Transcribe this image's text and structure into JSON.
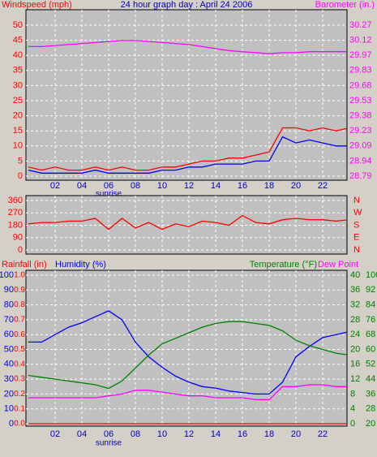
{
  "chart_data": [
    {
      "type": "line",
      "title": "24 hour graph day : April 24 2006",
      "y_label": "Windspeed (mph)",
      "y2_label": "Barometer (in.)",
      "x": [
        0,
        1,
        2,
        3,
        4,
        5,
        6,
        7,
        8,
        9,
        10,
        11,
        12,
        13,
        14,
        15,
        16,
        17,
        18,
        19,
        20,
        21,
        22,
        23,
        24
      ],
      "xlim": [
        0,
        24
      ],
      "xticks": [
        {
          "value": 2,
          "label": "02"
        },
        {
          "value": 4,
          "label": "04"
        },
        {
          "value": 6,
          "label": "06"
        },
        {
          "value": 8,
          "label": "08"
        },
        {
          "value": 10,
          "label": "10"
        },
        12,
        14,
        16,
        18,
        20,
        22
      ],
      "annotation": {
        "x": 6,
        "text": "sunrise"
      },
      "ylim": [
        0,
        50
      ],
      "yticks": [
        0,
        5,
        10,
        15,
        20,
        25,
        30,
        35,
        40,
        45,
        50
      ],
      "y2lim": [
        28.79,
        30.27
      ],
      "y2ticks": [
        28.79,
        {
          "value": 28.938,
          "label": "28.94"
        },
        {
          "value": 29.086,
          "label": "29.09"
        },
        {
          "value": 29.234,
          "label": "29.23"
        },
        {
          "value": 29.382,
          "label": "29.38"
        },
        29.53,
        {
          "value": 29.678,
          "label": "29.68"
        },
        {
          "value": 29.826,
          "label": "29.83"
        },
        {
          "value": 29.974,
          "label": "29.97"
        },
        {
          "value": 30.122,
          "label": "30.12"
        },
        30.27
      ],
      "grid": true,
      "series": [
        {
          "color": "#ff00ff",
          "axis": "y2",
          "values": [
            30.06,
            30.06,
            30.07,
            30.08,
            30.09,
            30.1,
            30.11,
            30.12,
            30.12,
            30.11,
            30.1,
            30.09,
            30.08,
            30.06,
            30.04,
            30.02,
            30.01,
            30.0,
            29.99,
            30.0,
            30.0,
            30.01,
            30.01,
            30.01,
            30.01
          ]
        },
        {
          "color": "#ff0000",
          "values": [
            3,
            2,
            3,
            2,
            2,
            3,
            2,
            3,
            2,
            2,
            3,
            3,
            4,
            5,
            5,
            6,
            6,
            7,
            8,
            16,
            16,
            15,
            16,
            15,
            16
          ]
        },
        {
          "color": "#0000ff",
          "values": [
            2,
            1,
            1,
            1,
            1,
            2,
            1,
            1,
            1,
            1,
            2,
            2,
            3,
            3,
            4,
            4,
            4,
            5,
            5,
            13,
            11,
            12,
            11,
            10,
            10
          ]
        }
      ]
    },
    {
      "type": "line",
      "x": [
        0,
        1,
        2,
        3,
        4,
        5,
        6,
        7,
        8,
        9,
        10,
        11,
        12,
        13,
        14,
        15,
        16,
        17,
        18,
        19,
        20,
        21,
        22,
        23,
        24
      ],
      "xlim": [
        0,
        24
      ],
      "ylim": [
        0,
        360
      ],
      "yticks": [
        0,
        90,
        180,
        270,
        360
      ],
      "y2lim": [
        0,
        360
      ],
      "y2ticks": [
        {
          "value": 0,
          "label": "N"
        },
        {
          "value": 90,
          "label": "E"
        },
        {
          "value": 180,
          "label": "S"
        },
        {
          "value": 270,
          "label": "W"
        },
        {
          "value": 360,
          "label": "N"
        }
      ],
      "grid": true,
      "series": [
        {
          "color": "#ff0000",
          "values": [
            190,
            200,
            200,
            210,
            210,
            230,
            150,
            230,
            160,
            200,
            150,
            190,
            170,
            210,
            200,
            180,
            250,
            200,
            190,
            220,
            230,
            220,
            220,
            210,
            220
          ]
        }
      ]
    },
    {
      "type": "line",
      "x": [
        0,
        1,
        2,
        3,
        4,
        5,
        6,
        7,
        8,
        9,
        10,
        11,
        12,
        13,
        14,
        15,
        16,
        17,
        18,
        19,
        20,
        21,
        22,
        23,
        24
      ],
      "xlim": [
        0,
        24
      ],
      "xticks": [
        {
          "value": 2,
          "label": "02"
        },
        {
          "value": 4,
          "label": "04"
        },
        {
          "value": 6,
          "label": "06"
        },
        {
          "value": 8,
          "label": "08"
        },
        {
          "value": 10,
          "label": "10"
        },
        12,
        14,
        16,
        18,
        20,
        22
      ],
      "annotation": {
        "x": 6,
        "text": "sunrise"
      },
      "ylim": [
        0,
        100
      ],
      "yticks": [
        0,
        10,
        20,
        30,
        40,
        50,
        60,
        70,
        80,
        90,
        100
      ],
      "y4lim": [
        0,
        1
      ],
      "y4ticks": [
        {
          "value": 0,
          "label": "0.0"
        },
        0.1,
        0.2,
        0.3,
        0.4,
        0.5,
        0.6,
        0.7,
        0.8,
        0.9,
        {
          "value": 1,
          "label": "1.0"
        }
      ],
      "y2lim": [
        0,
        40
      ],
      "y2ticks": [
        0,
        4,
        8,
        12,
        16,
        20,
        24,
        28,
        32,
        36,
        40
      ],
      "y3lim": [
        20,
        100
      ],
      "y3ticks": [
        20,
        28,
        36,
        44,
        52,
        60,
        68,
        76,
        84,
        92,
        100
      ],
      "grid": true,
      "series": [
        {
          "name": "Rainfall (in)",
          "color": "#ff0000",
          "axis": "y4",
          "values": [
            0,
            0,
            0,
            0,
            0,
            0,
            0,
            0,
            0,
            0,
            0,
            0,
            0,
            0,
            0,
            0,
            0,
            0,
            0,
            0,
            0,
            0,
            0,
            0,
            0
          ]
        },
        {
          "name": "Humidity (%)",
          "color": "#0000ff",
          "values": [
            55,
            55,
            60,
            65,
            68,
            72,
            76,
            70,
            55,
            45,
            38,
            32,
            28,
            25,
            24,
            22,
            21,
            20,
            20,
            28,
            45,
            52,
            58,
            60,
            62
          ]
        },
        {
          "name": "Temperature (°F)",
          "color": "#008000",
          "axis": "y3",
          "values": [
            46,
            45,
            44,
            43,
            42,
            41,
            39,
            43,
            50,
            57,
            63,
            66,
            69,
            72,
            74,
            75,
            75,
            74,
            73,
            70,
            65,
            62,
            60,
            58,
            57
          ]
        },
        {
          "name": "Dew Point",
          "color": "#ff00ff",
          "axis": "y3",
          "values": [
            34,
            34,
            34,
            34,
            34,
            34,
            35,
            36,
            38,
            38,
            37,
            36,
            35,
            35,
            34,
            34,
            34,
            33,
            33,
            40,
            40,
            41,
            41,
            40,
            40
          ]
        }
      ]
    }
  ]
}
